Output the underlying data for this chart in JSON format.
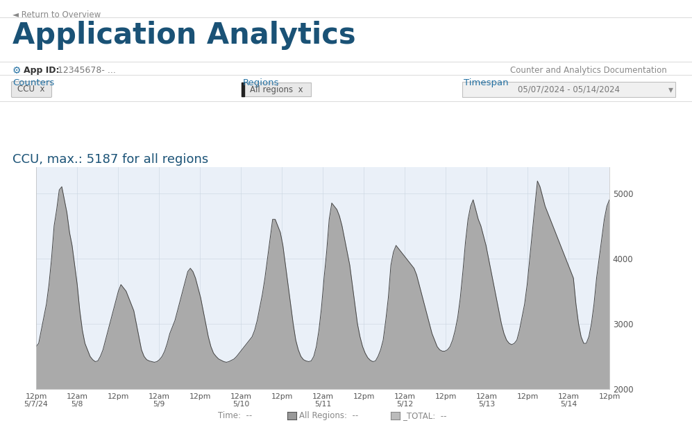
{
  "title": "Application Analytics",
  "return_text": "◄ Return to Overview",
  "app_id_label": "App ID:",
  "app_id_value": "12345678- ...",
  "doc_link_text": "Counter and Analytics Documentation",
  "counters_label": "Counters",
  "regions_label": "Regions",
  "timespan_label": "Timespan",
  "ccu_tag": "CCU  x",
  "all_regions_tag": "All regions  x",
  "timespan_value": "05/07/2024 - 05/14/2024",
  "chart_title": "CCU, max.: 5187 for all regions",
  "y_min": 2000,
  "y_max": 5400,
  "y_ticks": [
    2000,
    3000,
    4000,
    5000
  ],
  "x_tick_labels": [
    "12pm\n5/7/24",
    "12am\n5/8",
    "12pm",
    "12am\n5/9",
    "12pm",
    "12am\n5/10",
    "12pm",
    "12am\n5/11",
    "12pm",
    "12am\n5/12",
    "12pm",
    "12am\n5/13",
    "12pm",
    "12am\n5/14",
    "12pm"
  ],
  "fill_color": "#aaaaaa",
  "line_color": "#444444",
  "plot_bg": "#eaf0f8",
  "page_bg": "#ffffff",
  "title_color": "#1a5276",
  "chart_title_color": "#1a5276",
  "header_color": "#2471a3",
  "tag_bg": "#e8e8e8",
  "tag_border": "#bbbbbb",
  "ts_bg": "#f0f0f0",
  "ts_border": "#c0c0c0",
  "y_values": [
    2650,
    2700,
    2900,
    3100,
    3300,
    3600,
    4000,
    4500,
    4750,
    5050,
    5100,
    4900,
    4700,
    4400,
    4200,
    3900,
    3600,
    3200,
    2900,
    2700,
    2600,
    2500,
    2450,
    2420,
    2430,
    2500,
    2600,
    2750,
    2900,
    3050,
    3200,
    3350,
    3500,
    3600,
    3550,
    3500,
    3400,
    3300,
    3200,
    3000,
    2800,
    2600,
    2500,
    2450,
    2430,
    2420,
    2410,
    2420,
    2450,
    2500,
    2580,
    2700,
    2850,
    2950,
    3050,
    3200,
    3350,
    3500,
    3650,
    3800,
    3850,
    3800,
    3700,
    3550,
    3400,
    3200,
    3000,
    2800,
    2650,
    2550,
    2500,
    2460,
    2440,
    2420,
    2410,
    2420,
    2440,
    2460,
    2500,
    2550,
    2600,
    2650,
    2700,
    2750,
    2800,
    2900,
    3050,
    3250,
    3450,
    3700,
    4000,
    4300,
    4600,
    4600,
    4500,
    4400,
    4200,
    3900,
    3600,
    3300,
    3000,
    2750,
    2600,
    2500,
    2450,
    2430,
    2420,
    2430,
    2500,
    2650,
    2900,
    3250,
    3700,
    4100,
    4600,
    4850,
    4800,
    4750,
    4650,
    4500,
    4300,
    4100,
    3900,
    3600,
    3300,
    3000,
    2800,
    2650,
    2550,
    2480,
    2440,
    2420,
    2430,
    2500,
    2600,
    2750,
    3050,
    3400,
    3900,
    4100,
    4200,
    4150,
    4100,
    4050,
    4000,
    3950,
    3900,
    3850,
    3750,
    3600,
    3450,
    3300,
    3150,
    3000,
    2850,
    2750,
    2650,
    2600,
    2580,
    2580,
    2600,
    2650,
    2750,
    2900,
    3100,
    3400,
    3800,
    4250,
    4600,
    4800,
    4900,
    4750,
    4600,
    4500,
    4350,
    4200,
    4000,
    3800,
    3600,
    3400,
    3200,
    3000,
    2850,
    2750,
    2700,
    2680,
    2700,
    2750,
    2900,
    3100,
    3300,
    3600,
    4000,
    4400,
    4800,
    5187,
    5100,
    4950,
    4800,
    4700,
    4600,
    4500,
    4400,
    4300,
    4200,
    4100,
    4000,
    3900,
    3800,
    3700,
    3300,
    3000,
    2800,
    2700,
    2700,
    2800,
    3000,
    3300,
    3700,
    4000,
    4300,
    4600,
    4800,
    4900
  ]
}
